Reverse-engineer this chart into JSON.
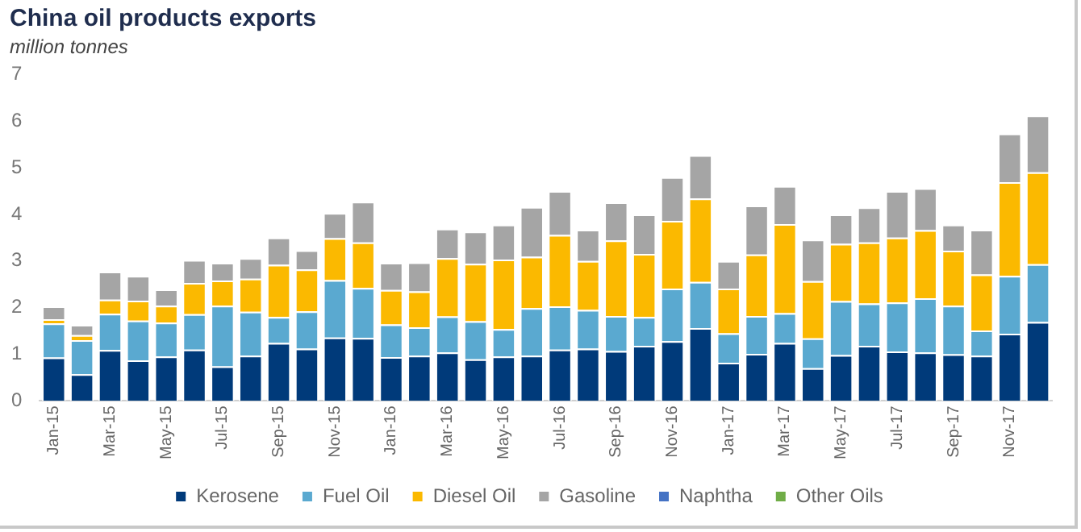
{
  "chart_data": {
    "type": "bar",
    "title": "China oil products exports",
    "subtitle": "million tonnes",
    "categories": [
      "Jan-15",
      null,
      "Mar-15",
      null,
      "May-15",
      null,
      "Jul-15",
      null,
      "Sep-15",
      null,
      "Nov-15",
      null,
      "Jan-16",
      null,
      "Mar-16",
      null,
      "May-16",
      null,
      "Jul-16",
      null,
      "Sep-16",
      null,
      "Nov-16",
      null,
      "Jan-17",
      null,
      "Mar-17",
      null,
      "May-17",
      null,
      "Jul-17",
      null,
      "Sep-17",
      null,
      "Nov-17",
      null
    ],
    "stacked": true,
    "series": [
      {
        "name": "Kerosene",
        "color": "#003a7a",
        "values": [
          0.93,
          0.57,
          1.09,
          0.87,
          0.95,
          1.1,
          0.74,
          0.97,
          1.24,
          1.12,
          1.36,
          1.35,
          0.94,
          0.97,
          1.04,
          0.89,
          0.95,
          0.97,
          1.1,
          1.12,
          1.07,
          1.18,
          1.28,
          1.56,
          0.82,
          1.01,
          1.24,
          0.7,
          0.98,
          1.18,
          1.06,
          1.04,
          1.0,
          0.97,
          1.44,
          1.69
        ]
      },
      {
        "name": "Fuel Oil",
        "color": "#5aa9d0",
        "values": [
          0.73,
          0.73,
          0.78,
          0.85,
          0.73,
          0.76,
          1.3,
          0.94,
          0.56,
          0.8,
          1.23,
          1.07,
          0.7,
          0.61,
          0.77,
          0.82,
          0.59,
          1.02,
          0.93,
          0.83,
          0.75,
          0.62,
          1.13,
          0.99,
          0.63,
          0.81,
          0.64,
          0.64,
          1.16,
          0.91,
          1.05,
          1.16,
          1.04,
          0.54,
          1.24,
          1.24
        ]
      },
      {
        "name": "Diesel Oil",
        "color": "#fbb900",
        "values": [
          0.09,
          0.11,
          0.3,
          0.43,
          0.36,
          0.67,
          0.54,
          0.71,
          1.12,
          0.9,
          0.9,
          0.98,
          0.74,
          0.77,
          1.25,
          1.23,
          1.49,
          1.1,
          1.53,
          1.05,
          1.62,
          1.35,
          1.45,
          1.79,
          0.96,
          1.32,
          1.91,
          1.23,
          1.23,
          1.31,
          1.39,
          1.46,
          1.18,
          1.2,
          2.01,
          1.97
        ]
      },
      {
        "name": "Gasoline",
        "color": "#a5a5a5",
        "values": [
          0.28,
          0.22,
          0.6,
          0.53,
          0.35,
          0.49,
          0.38,
          0.44,
          0.58,
          0.41,
          0.54,
          0.87,
          0.58,
          0.62,
          0.63,
          0.69,
          0.75,
          1.07,
          0.94,
          0.67,
          0.82,
          0.85,
          0.94,
          0.93,
          0.59,
          1.05,
          0.82,
          0.89,
          0.63,
          0.75,
          1.0,
          0.9,
          0.56,
          0.96,
          1.04,
          1.22
        ]
      },
      {
        "name": "Naphtha",
        "color": "#4472c4",
        "values": [
          0,
          0,
          0,
          0,
          0,
          0,
          0,
          0,
          0,
          0,
          0,
          0,
          0,
          0,
          0,
          0,
          0,
          0,
          0,
          0,
          0,
          0,
          0,
          0,
          0,
          0,
          0,
          0,
          0,
          0,
          0,
          0,
          0,
          0,
          0,
          0
        ]
      },
      {
        "name": "Other Oils",
        "color": "#70ad47",
        "values": [
          0,
          0,
          0,
          0,
          0,
          0,
          0,
          0,
          0,
          0,
          0,
          0,
          0,
          0,
          0,
          0,
          0,
          0,
          0,
          0,
          0,
          0,
          0,
          0,
          0,
          0,
          0,
          0,
          0,
          0,
          0,
          0,
          0,
          0,
          0,
          0
        ]
      }
    ],
    "ylim": [
      0,
      7
    ],
    "yticks": [
      0,
      1,
      2,
      3,
      4,
      5,
      6,
      7
    ],
    "grid": false,
    "legend": "bottom"
  }
}
